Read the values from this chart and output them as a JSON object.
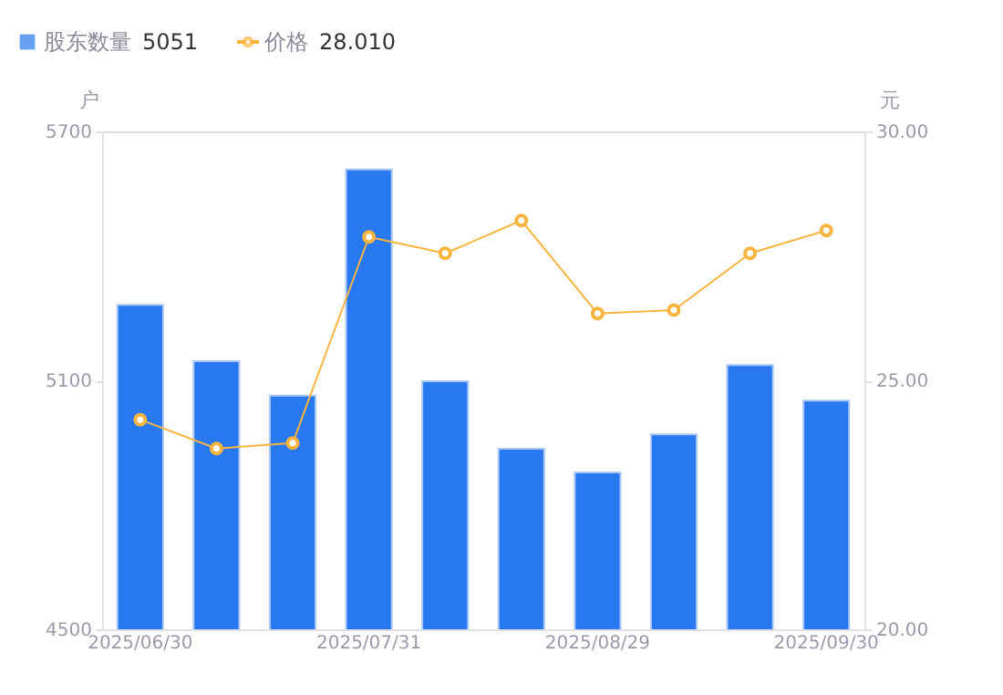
{
  "chart_data": {
    "type": "bar",
    "categories": [
      "2025/06/30",
      null,
      null,
      "2025/07/31",
      null,
      null,
      "2025/08/29",
      null,
      null,
      "2025/09/30"
    ],
    "series": [
      {
        "name": "股东数量",
        "color": "#2878f0",
        "values": [
          5282,
          5146,
          5063,
          5608,
          5098,
          4935,
          4878,
          4970,
          5137,
          5051
        ]
      },
      {
        "name": "价格",
        "type": "line",
        "axis": "y2",
        "color": "#f9b440",
        "values": [
          24.21,
          23.63,
          23.74,
          27.88,
          27.55,
          28.21,
          26.34,
          26.41,
          27.55,
          28.01
        ]
      }
    ],
    "ylabel": "户",
    "y2label": "元",
    "ylim": [
      4500,
      5700
    ],
    "yticks": [
      4500,
      5100,
      5700
    ],
    "y2lim": [
      20,
      30
    ],
    "y2ticks": [
      {
        "value": 20,
        "label": "20.00"
      },
      {
        "value": 25,
        "label": "25.00"
      },
      {
        "value": 30,
        "label": "30.00"
      }
    ],
    "annotations": [
      "5051",
      "28.010"
    ],
    "legend": "top left",
    "grid": false,
    "marker": "circle",
    "line_style": "solid"
  }
}
